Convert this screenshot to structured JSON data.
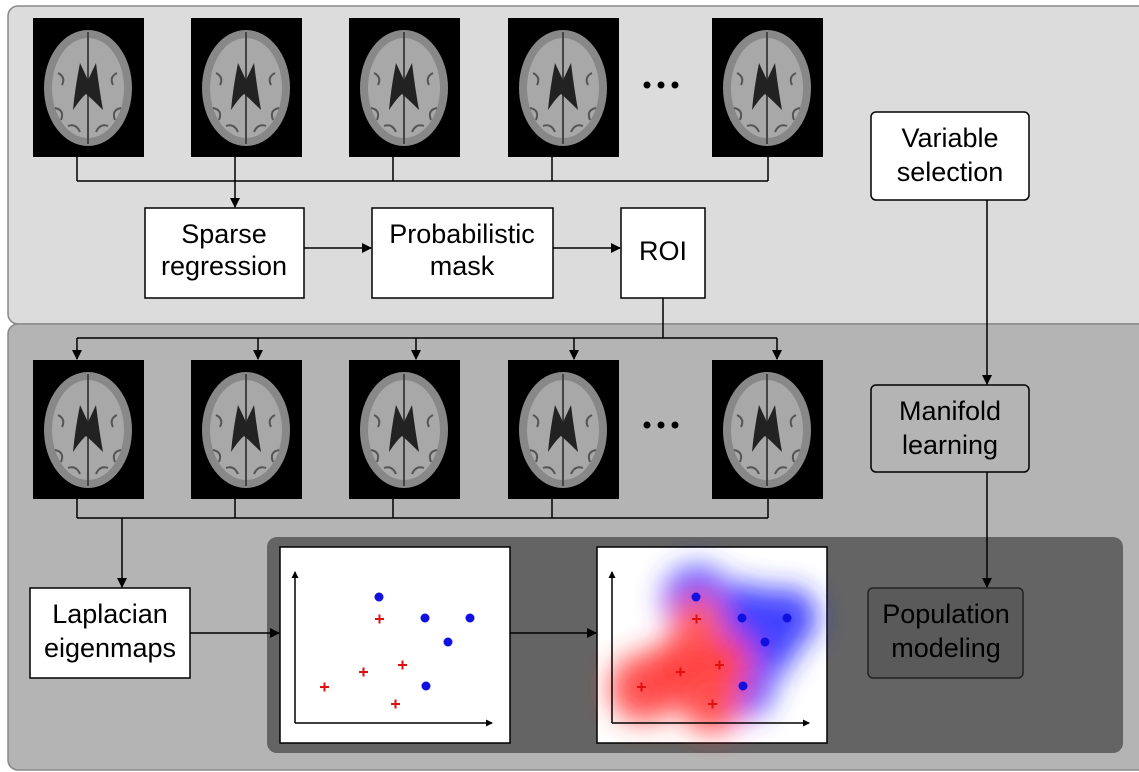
{
  "nodes": [
    {
      "lines": [
        "Sparse",
        "regression"
      ]
    },
    {
      "lines": [
        "Probabilistic",
        "mask"
      ]
    },
    {
      "lines": [
        "ROI"
      ]
    },
    {
      "lines": [
        "Variable",
        "selection"
      ]
    },
    {
      "lines": [
        "Manifold",
        "learning"
      ]
    },
    {
      "lines": [
        "Laplacian",
        "eigenmaps"
      ]
    },
    {
      "lines": [
        "Population",
        "modeling"
      ]
    }
  ]
}
